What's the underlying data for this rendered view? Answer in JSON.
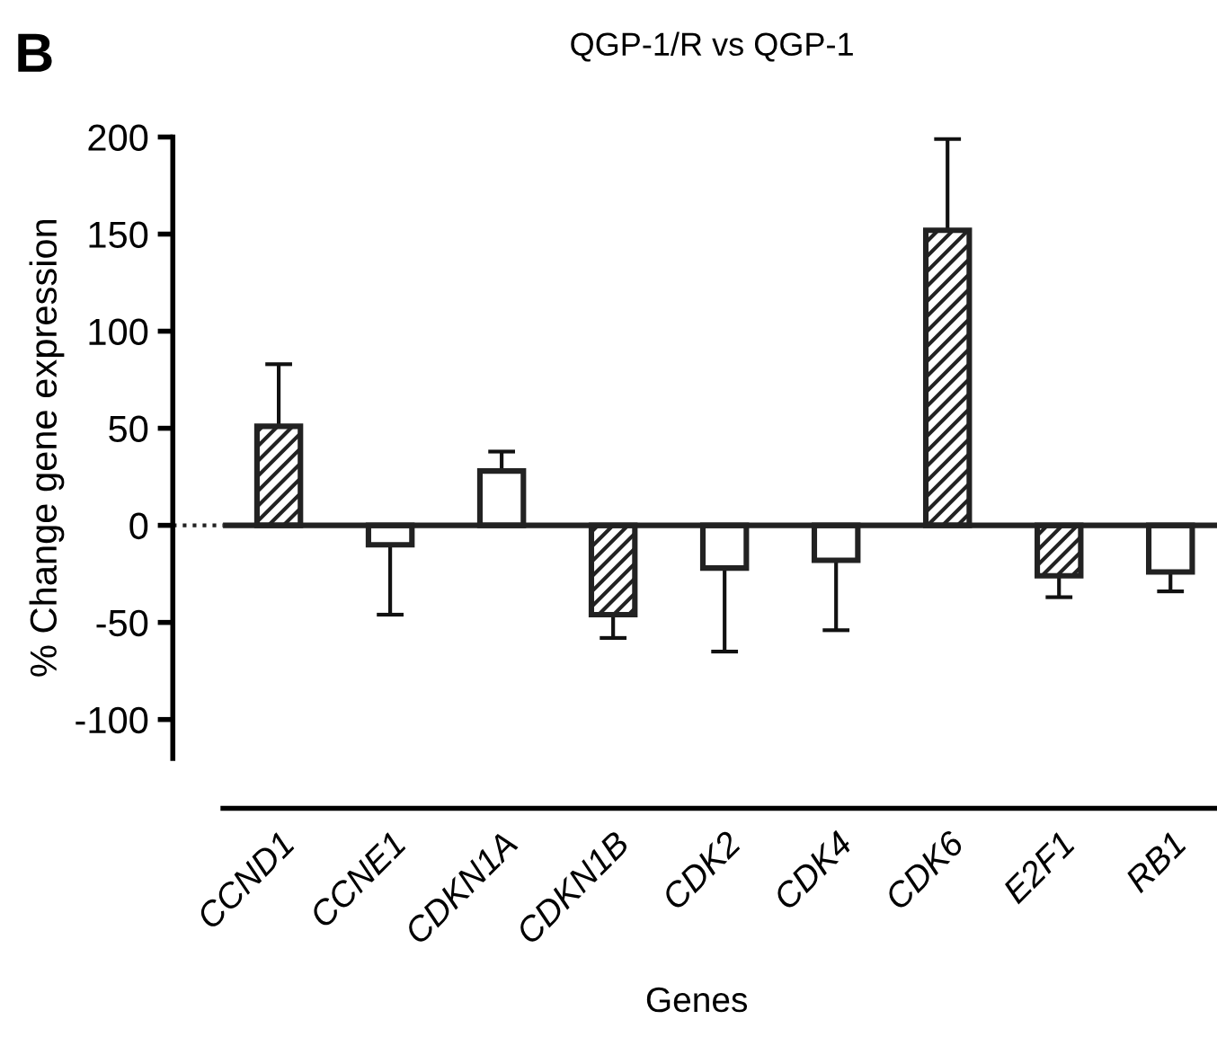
{
  "chart_data": {
    "type": "bar",
    "title": "QGP-1/R vs QGP-1",
    "xlabel": "Genes",
    "ylabel": "% Change gene expression",
    "annotations": [
      "B"
    ],
    "categories": [
      "CCND1",
      "CCNE1",
      "CDKN1A",
      "CDKN1B",
      "CDK2",
      "CDK4",
      "CDK6",
      "E2F1",
      "RB1"
    ],
    "values": [
      51,
      -10,
      28,
      -46,
      -22,
      -18,
      152,
      -26,
      -24
    ],
    "errors": [
      [
        51,
        83
      ],
      [
        -46,
        -10
      ],
      [
        28,
        38
      ],
      [
        -58,
        -46
      ],
      [
        -65,
        -22
      ],
      [
        -54,
        -18
      ],
      [
        152,
        199
      ],
      [
        -37,
        -26
      ],
      [
        -34,
        -24
      ]
    ],
    "colors": [
      "#222222",
      "#ffffff",
      "#ffffff",
      "#222222",
      "#ffffff",
      "#ffffff",
      "#222222",
      "#222222",
      "#ffffff"
    ],
    "ylim": [
      -120,
      200
    ],
    "yticks": [
      -100,
      -50,
      0,
      50,
      100,
      150,
      200
    ],
    "ref_lines": [
      {
        "axis": "y",
        "value": 0,
        "line_style": "solid"
      }
    ],
    "grid": false,
    "legend": false
  }
}
